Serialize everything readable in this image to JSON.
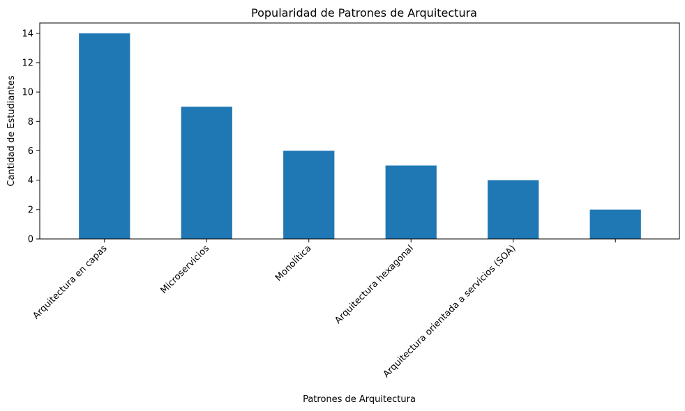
{
  "chart_data": {
    "type": "bar",
    "title": "Popularidad de Patrones de Arquitectura",
    "xlabel": "Patrones de Arquitectura",
    "ylabel": "Cantidad de Estudiantes",
    "categories": [
      "Arquitectura en capas",
      "Microservicios",
      "Monolítica",
      "Arquitectura hexagonal",
      "Arquitectura orientada a servicios (SOA)",
      ""
    ],
    "values": [
      14,
      9,
      6,
      5,
      4,
      2
    ],
    "ylim": [
      0,
      14.7
    ],
    "yticks": [
      0,
      2,
      4,
      6,
      8,
      10,
      12,
      14
    ],
    "grid": false,
    "legend": "none",
    "bar_color": "#1f77b4"
  }
}
